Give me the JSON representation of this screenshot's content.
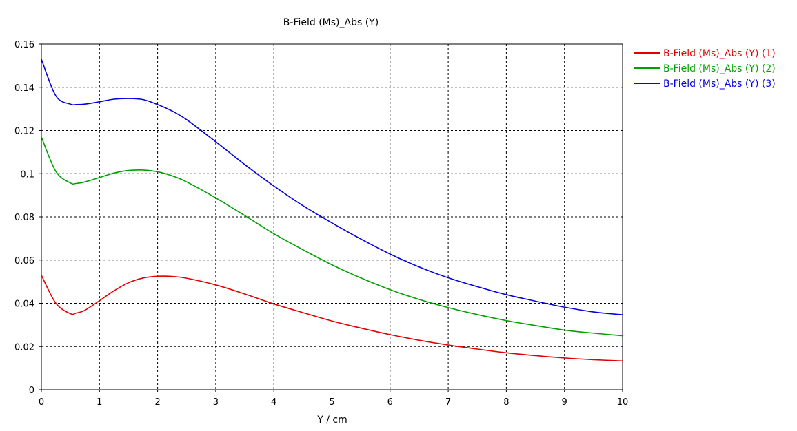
{
  "chart_data": {
    "type": "line",
    "title": "B-Field (Ms)_Abs (Y)",
    "xlabel": "Y / cm",
    "ylabel": "",
    "xlim": [
      0,
      10
    ],
    "ylim": [
      0,
      0.16
    ],
    "x_ticks": [
      "0",
      "1",
      "2",
      "3",
      "4",
      "5",
      "6",
      "7",
      "8",
      "9",
      "10"
    ],
    "y_ticks": [
      "0",
      "0.02",
      "0.04",
      "0.06",
      "0.08",
      "0.1",
      "0.12",
      "0.14",
      "0.16"
    ],
    "grid": true,
    "legend_position": "right",
    "x": [
      0,
      0.25,
      0.5,
      0.6,
      0.75,
      1,
      1.25,
      1.5,
      1.75,
      2,
      2.25,
      2.5,
      3,
      3.5,
      4,
      4.5,
      5,
      5.5,
      6,
      6.5,
      7,
      7.5,
      8,
      8.5,
      9,
      9.5,
      10
    ],
    "series": [
      {
        "name": "B-Field (Ms)_Abs (Y) (1)",
        "color": "#e00000",
        "values": [
          0.053,
          0.04,
          0.0352,
          0.0355,
          0.0368,
          0.0412,
          0.0458,
          0.0495,
          0.0517,
          0.0525,
          0.0524,
          0.0516,
          0.0485,
          0.0443,
          0.0397,
          0.0357,
          0.0318,
          0.0285,
          0.0255,
          0.0229,
          0.0207,
          0.0188,
          0.0171,
          0.0158,
          0.0147,
          0.0139,
          0.0133
        ]
      },
      {
        "name": "B-Field (Ms)_Abs (Y) (2)",
        "color": "#00a000",
        "values": [
          0.117,
          0.101,
          0.0957,
          0.0955,
          0.0962,
          0.0982,
          0.1003,
          0.1015,
          0.1017,
          0.1009,
          0.099,
          0.0962,
          0.0888,
          0.0806,
          0.0722,
          0.0648,
          0.0578,
          0.0517,
          0.0463,
          0.0418,
          0.038,
          0.0348,
          0.032,
          0.0297,
          0.0276,
          0.0262,
          0.025
        ]
      },
      {
        "name": "B-Field (Ms)_Abs (Y) (3)",
        "color": "#0000e0",
        "values": [
          0.153,
          0.136,
          0.1322,
          0.132,
          0.1322,
          0.1333,
          0.1345,
          0.1348,
          0.1343,
          0.132,
          0.129,
          0.125,
          0.1148,
          0.1042,
          0.0943,
          0.0852,
          0.0772,
          0.0697,
          0.0628,
          0.0568,
          0.0518,
          0.0477,
          0.044,
          0.041,
          0.0382,
          0.036,
          0.0347
        ]
      }
    ]
  }
}
